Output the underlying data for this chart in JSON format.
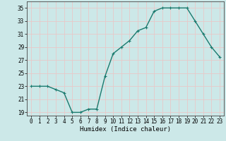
{
  "x": [
    0,
    1,
    2,
    3,
    4,
    5,
    6,
    7,
    8,
    9,
    10,
    11,
    12,
    13,
    14,
    15,
    16,
    17,
    18,
    19,
    20,
    21,
    22,
    23
  ],
  "y": [
    23.0,
    23.0,
    23.0,
    22.5,
    22.0,
    19.0,
    19.0,
    19.5,
    19.5,
    24.5,
    28.0,
    29.0,
    30.0,
    31.5,
    32.0,
    34.5,
    35.0,
    35.0,
    35.0,
    35.0,
    33.0,
    31.0,
    29.0,
    27.5
  ],
  "line_color": "#1a7a6e",
  "marker": "+",
  "marker_size": 3,
  "bg_color": "#cce8e8",
  "grid_color": "#e8c8c8",
  "xlabel": "Humidex (Indice chaleur)",
  "yticks": [
    19,
    21,
    23,
    25,
    27,
    29,
    31,
    33,
    35
  ],
  "xtick_labels": [
    "0",
    "1",
    "2",
    "3",
    "4",
    "5",
    "6",
    "7",
    "8",
    "9",
    "10",
    "11",
    "12",
    "13",
    "14",
    "15",
    "16",
    "17",
    "18",
    "19",
    "20",
    "21",
    "22",
    "23"
  ],
  "xlim": [
    -0.5,
    23.5
  ],
  "ylim": [
    18.5,
    36.0
  ],
  "tick_fontsize": 5.5,
  "xlabel_fontsize": 6.5,
  "line_width": 1.0
}
